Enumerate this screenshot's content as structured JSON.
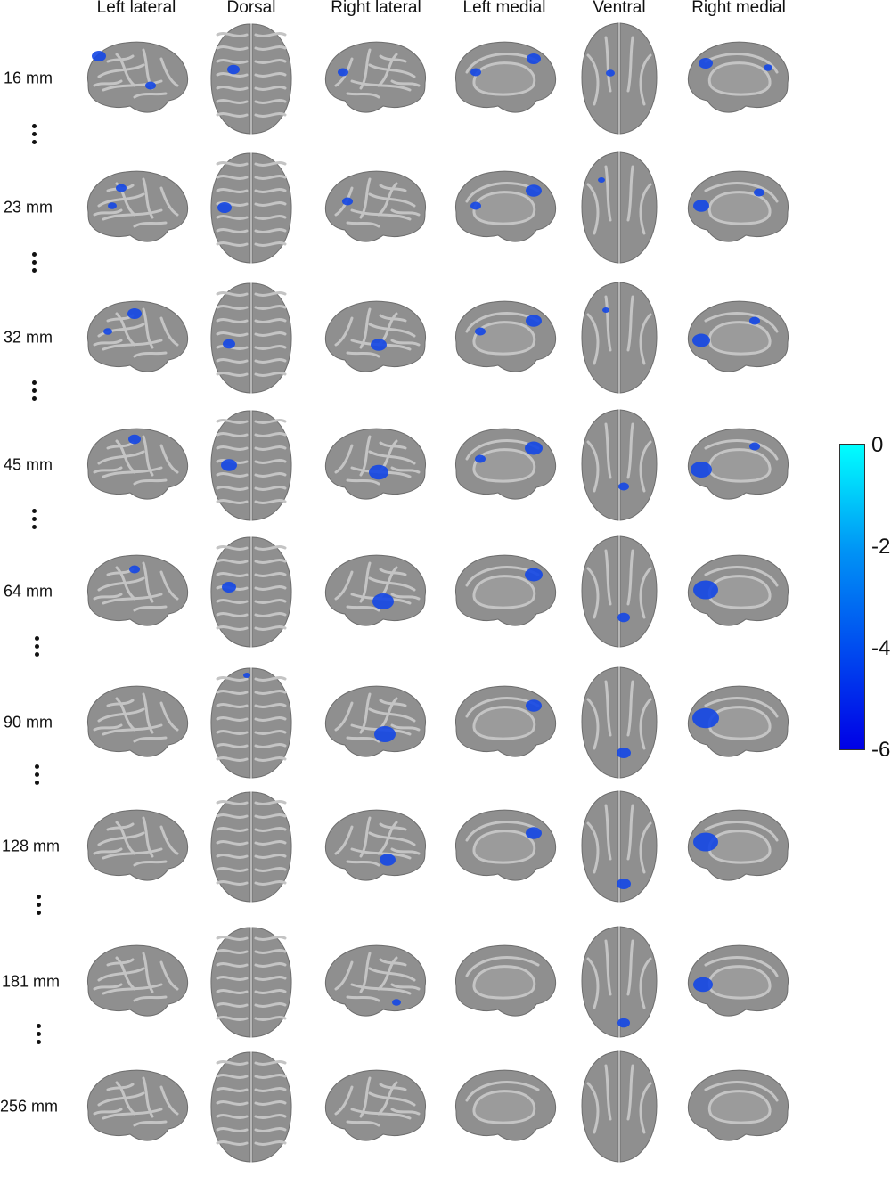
{
  "columns": [
    "Left lateral",
    "Dorsal",
    "Right lateral",
    "Left medial",
    "Ventral",
    "Right medial"
  ],
  "rows": [
    "16 mm",
    "23 mm",
    "32 mm",
    "45 mm",
    "64 mm",
    "90 mm",
    "128 mm",
    "181 mm",
    "256 mm"
  ],
  "colorbar": {
    "ticks": [
      "0",
      "-2",
      "-4",
      "-6"
    ],
    "colors": [
      "#00ffff",
      "#0093f5",
      "#0050f0",
      "#0000e6"
    ]
  },
  "colors": {
    "cortex": "#8f8f8f",
    "cortex_light": "#c4c4c4",
    "activation": "#1447e6"
  }
}
